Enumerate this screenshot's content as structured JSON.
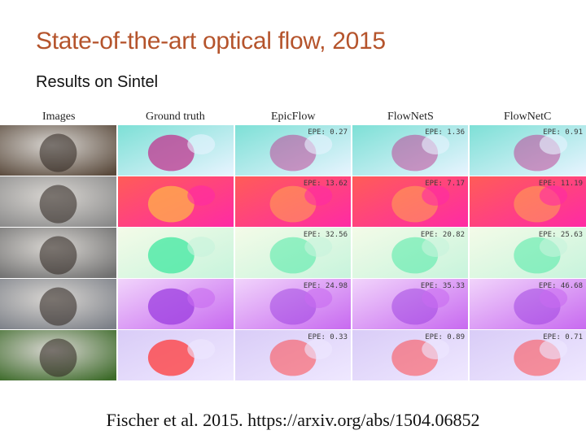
{
  "slide": {
    "title": "State-of-the-art optical flow, 2015",
    "subtitle": "Results on Sintel",
    "citation": "Fischer et al. 2015. https://arxiv.org/abs/1504.06852"
  },
  "figure": {
    "columns": [
      "Images",
      "Ground truth",
      "EpicFlow",
      "FlowNetS",
      "FlowNetC"
    ],
    "rows": [
      {
        "image_tone": "#5a4a3c",
        "gt": [
          "#7de0d6",
          "#e8f4ff",
          "#c0358f"
        ],
        "epe": [
          "EPE: 0.27",
          "EPE: 1.36",
          "EPE: 0.91"
        ]
      },
      {
        "image_tone": "#8a8a8a",
        "gt": [
          "#ff5c57",
          "#ff2aa5",
          "#ffb24a"
        ],
        "epe": [
          "EPE: 13.62",
          "EPE: 7.17",
          "EPE: 11.19"
        ]
      },
      {
        "image_tone": "#6f6f6f",
        "gt": [
          "#f4fbe8",
          "#c7f4dc",
          "#40e8a0"
        ],
        "epe": [
          "EPE: 32.56",
          "EPE: 20.82",
          "EPE: 25.63"
        ]
      },
      {
        "image_tone": "#7c8088",
        "gt": [
          "#f1d4fb",
          "#c86af0",
          "#9c3de0"
        ],
        "epe": [
          "EPE: 24.98",
          "EPE: 35.33",
          "EPE: 46.68"
        ]
      },
      {
        "image_tone": "#3d6b2a",
        "gt": [
          "#d9ccf7",
          "#efe8ff",
          "#ff3a3a"
        ],
        "epe": [
          "EPE: 0.33",
          "EPE: 0.89",
          "EPE: 0.71"
        ]
      }
    ]
  }
}
